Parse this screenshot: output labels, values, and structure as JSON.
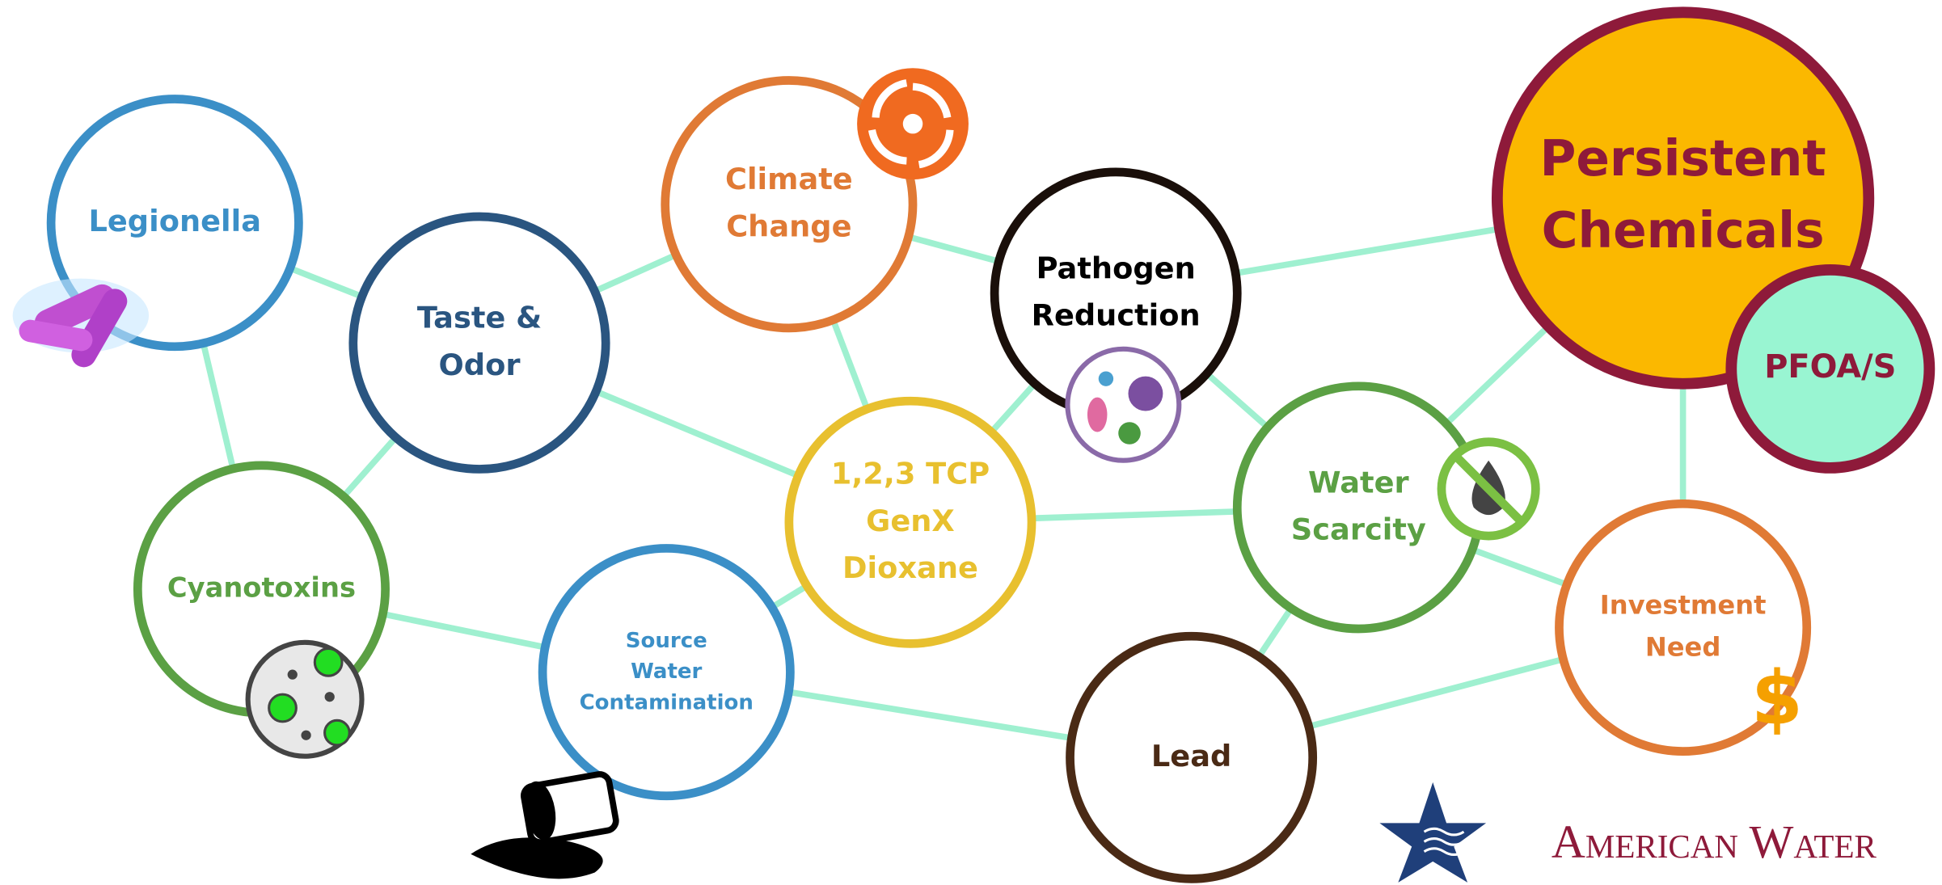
{
  "nodes": [
    {
      "lines": [
        "Legionella"
      ]
    },
    {
      "lines": [
        "Taste &",
        "Odor"
      ]
    },
    {
      "lines": [
        "Climate",
        "Change"
      ]
    },
    {
      "lines": [
        "Pathogen",
        "Reduction"
      ]
    },
    {
      "lines": [
        "Persistent",
        "Chemicals"
      ]
    },
    {
      "lines": [
        "PFOA/S"
      ]
    },
    {
      "lines": [
        "Cyanotoxins"
      ]
    },
    {
      "lines": [
        "1,2,3 TCP",
        "GenX",
        "Dioxane"
      ]
    },
    {
      "lines": [
        "Water",
        "Scarcity"
      ]
    },
    {
      "lines": [
        "Source",
        "Water",
        "Contamination"
      ]
    },
    {
      "lines": [
        "Investment",
        "Need"
      ]
    },
    {
      "lines": [
        "Lead"
      ]
    }
  ],
  "logo": {
    "text": "American Water"
  }
}
